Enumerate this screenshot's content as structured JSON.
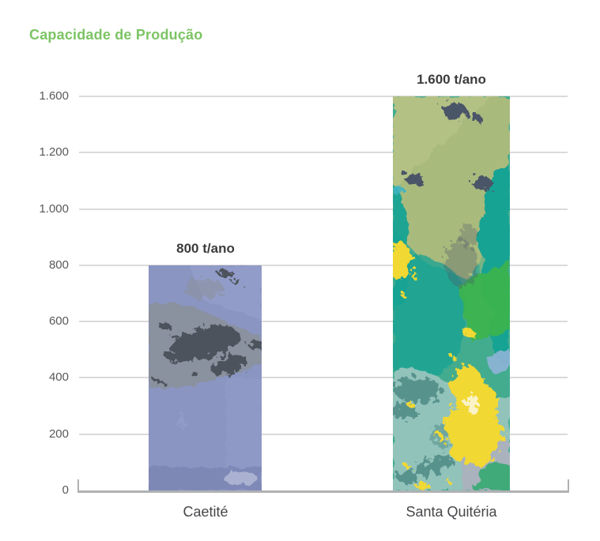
{
  "chart_data": {
    "type": "bar",
    "title": "Capacidade de Produção",
    "categories": [
      "Caetité",
      "Santa Quitéria"
    ],
    "values": [
      800,
      1600
    ],
    "value_labels": [
      "800 t/ano",
      "1.600 t/ano"
    ],
    "unit": "t/ano",
    "ylim": [
      0,
      1600
    ],
    "grid": "horizontal",
    "legend": "none",
    "yticks": [
      {
        "label": "1.600",
        "value": 1600
      },
      {
        "label": "1.200",
        "value": 1200
      },
      {
        "label": "1.000",
        "value": 1000
      },
      {
        "label": "800",
        "value": 800
      },
      {
        "label": "600",
        "value": 600
      },
      {
        "label": "400",
        "value": 400
      },
      {
        "label": "200",
        "value": 200
      },
      {
        "label": "0",
        "value": 0
      }
    ],
    "bars": [
      {
        "category": "Caetité",
        "value": 800,
        "value_label": "800 t/ano",
        "texture": "blue-gray-mineral-photo"
      },
      {
        "category": "Santa Quitéria",
        "value": 1600,
        "value_label": "1.600 t/ano",
        "texture": "green-teal-yellow-paint-photo"
      }
    ]
  },
  "colors": {
    "title_green": "#7cc464",
    "gridline": "#dadada",
    "axis_line": "#b0b1b3",
    "tick_text": "#58595c",
    "value_text": "#3b3c3e",
    "category_text": "#46474a",
    "ca": {
      "base": "#8a95c2",
      "light": "#9ba4ce",
      "gray": "#8b919b",
      "dark": "#4e535c",
      "deep": "#7680ae",
      "smudge": "#b6bdd8"
    },
    "sq": {
      "tealgreen": "#43ac8f",
      "olive": "#a9ba7d",
      "olive2": "#bac489",
      "teal": "#12a394",
      "green": "#3cb44b",
      "yellow": "#f2d832",
      "dark": "#4b5568",
      "seafoam": "#92c3bb",
      "gray": "#a9b2bd",
      "blue": "#8fb4d8",
      "grass": "#3faa78",
      "deepteal": "#4f8a85",
      "cyan": "#3db4c4",
      "hotspot": "#fbf6d8"
    }
  }
}
